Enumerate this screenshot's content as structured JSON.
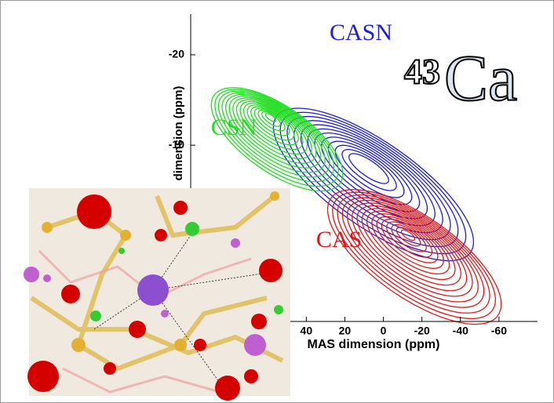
{
  "chart_data": {
    "type": "contour",
    "xlabel": "MAS dimension (ppm)",
    "ylabel": "dimension (ppm)",
    "xlim": [
      100,
      -80
    ],
    "ylim": [
      -24.5,
      9.5
    ],
    "xticks": [
      40,
      20,
      0,
      -20,
      -40,
      -60
    ],
    "yticks": [
      -20,
      -10
    ],
    "series": [
      {
        "name": "CASN",
        "color": "#1c1ce0"
      },
      {
        "name": "CSN",
        "color": "#20dd20"
      },
      {
        "name": "CAS",
        "color": "#e01818"
      }
    ],
    "annotation": {
      "superscript": "43",
      "text": "Ca"
    }
  }
}
